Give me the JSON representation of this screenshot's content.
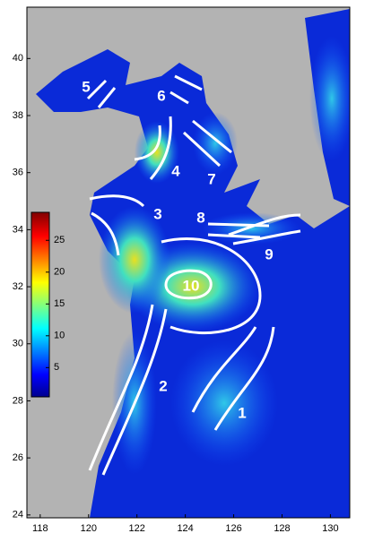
{
  "map": {
    "xlim": [
      117.45,
      130.8
    ],
    "ylim": [
      23.9,
      41.8
    ],
    "xticks": [
      118,
      120,
      122,
      124,
      126,
      128,
      130
    ],
    "yticks": [
      24,
      26,
      28,
      30,
      32,
      34,
      36,
      38,
      40
    ],
    "colorbar": {
      "lim": [
        0.4,
        29.4
      ],
      "ticks": [
        5,
        10,
        15,
        20,
        25
      ]
    },
    "regions": [
      "1",
      "2",
      "3",
      "4",
      "5",
      "6",
      "7",
      "8",
      "9",
      "10"
    ]
  }
}
